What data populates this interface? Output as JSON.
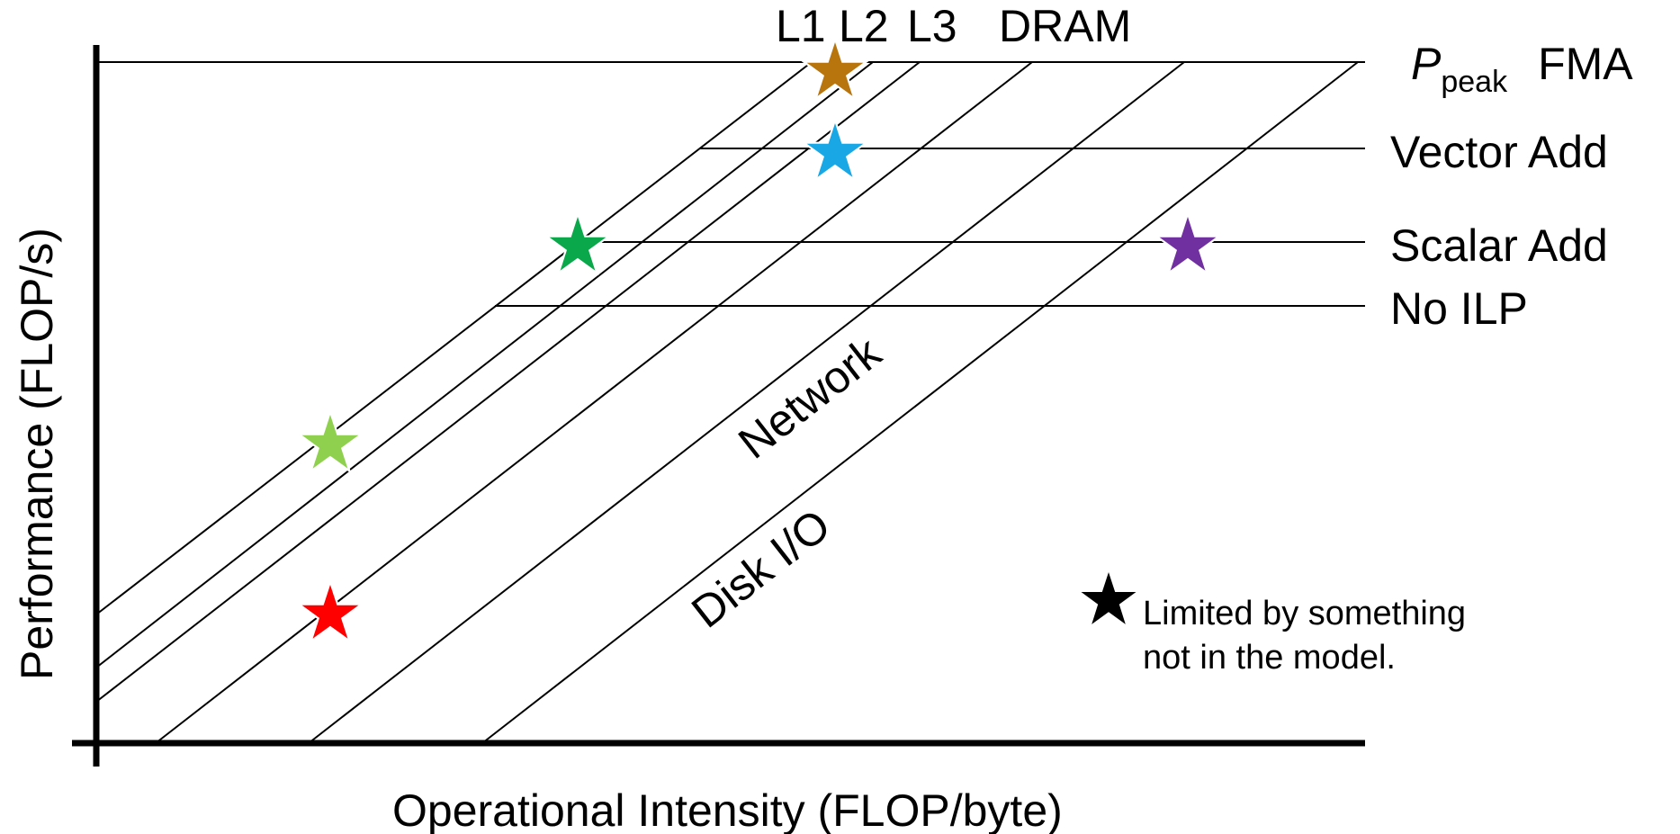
{
  "chart_data": {
    "type": "line",
    "xlabel": "Operational Intensity (FLOP/byte)",
    "ylabel": "Performance (FLOP/s)",
    "bandwidth_ceilings": [
      "L1",
      "L2",
      "L3",
      "DRAM",
      "Network",
      "Disk I/O"
    ],
    "compute_ceilings": [
      {
        "symbol": "P",
        "subscript": "peak",
        "label": "FMA"
      },
      {
        "label": "Vector Add"
      },
      {
        "label": "Scalar Add"
      },
      {
        "label": "No ILP"
      }
    ],
    "legend": {
      "text_line1": "Limited by something",
      "text_line2": "not in the model."
    },
    "stars": [
      {
        "name": "star-orange",
        "color": "#b8750d"
      },
      {
        "name": "star-blue",
        "color": "#1aa7e6"
      },
      {
        "name": "star-green",
        "color": "#0aa84a"
      },
      {
        "name": "star-purple",
        "color": "#7030a0"
      },
      {
        "name": "star-lightgreen",
        "color": "#8fd14f"
      },
      {
        "name": "star-red",
        "color": "#ff0000"
      }
    ]
  }
}
